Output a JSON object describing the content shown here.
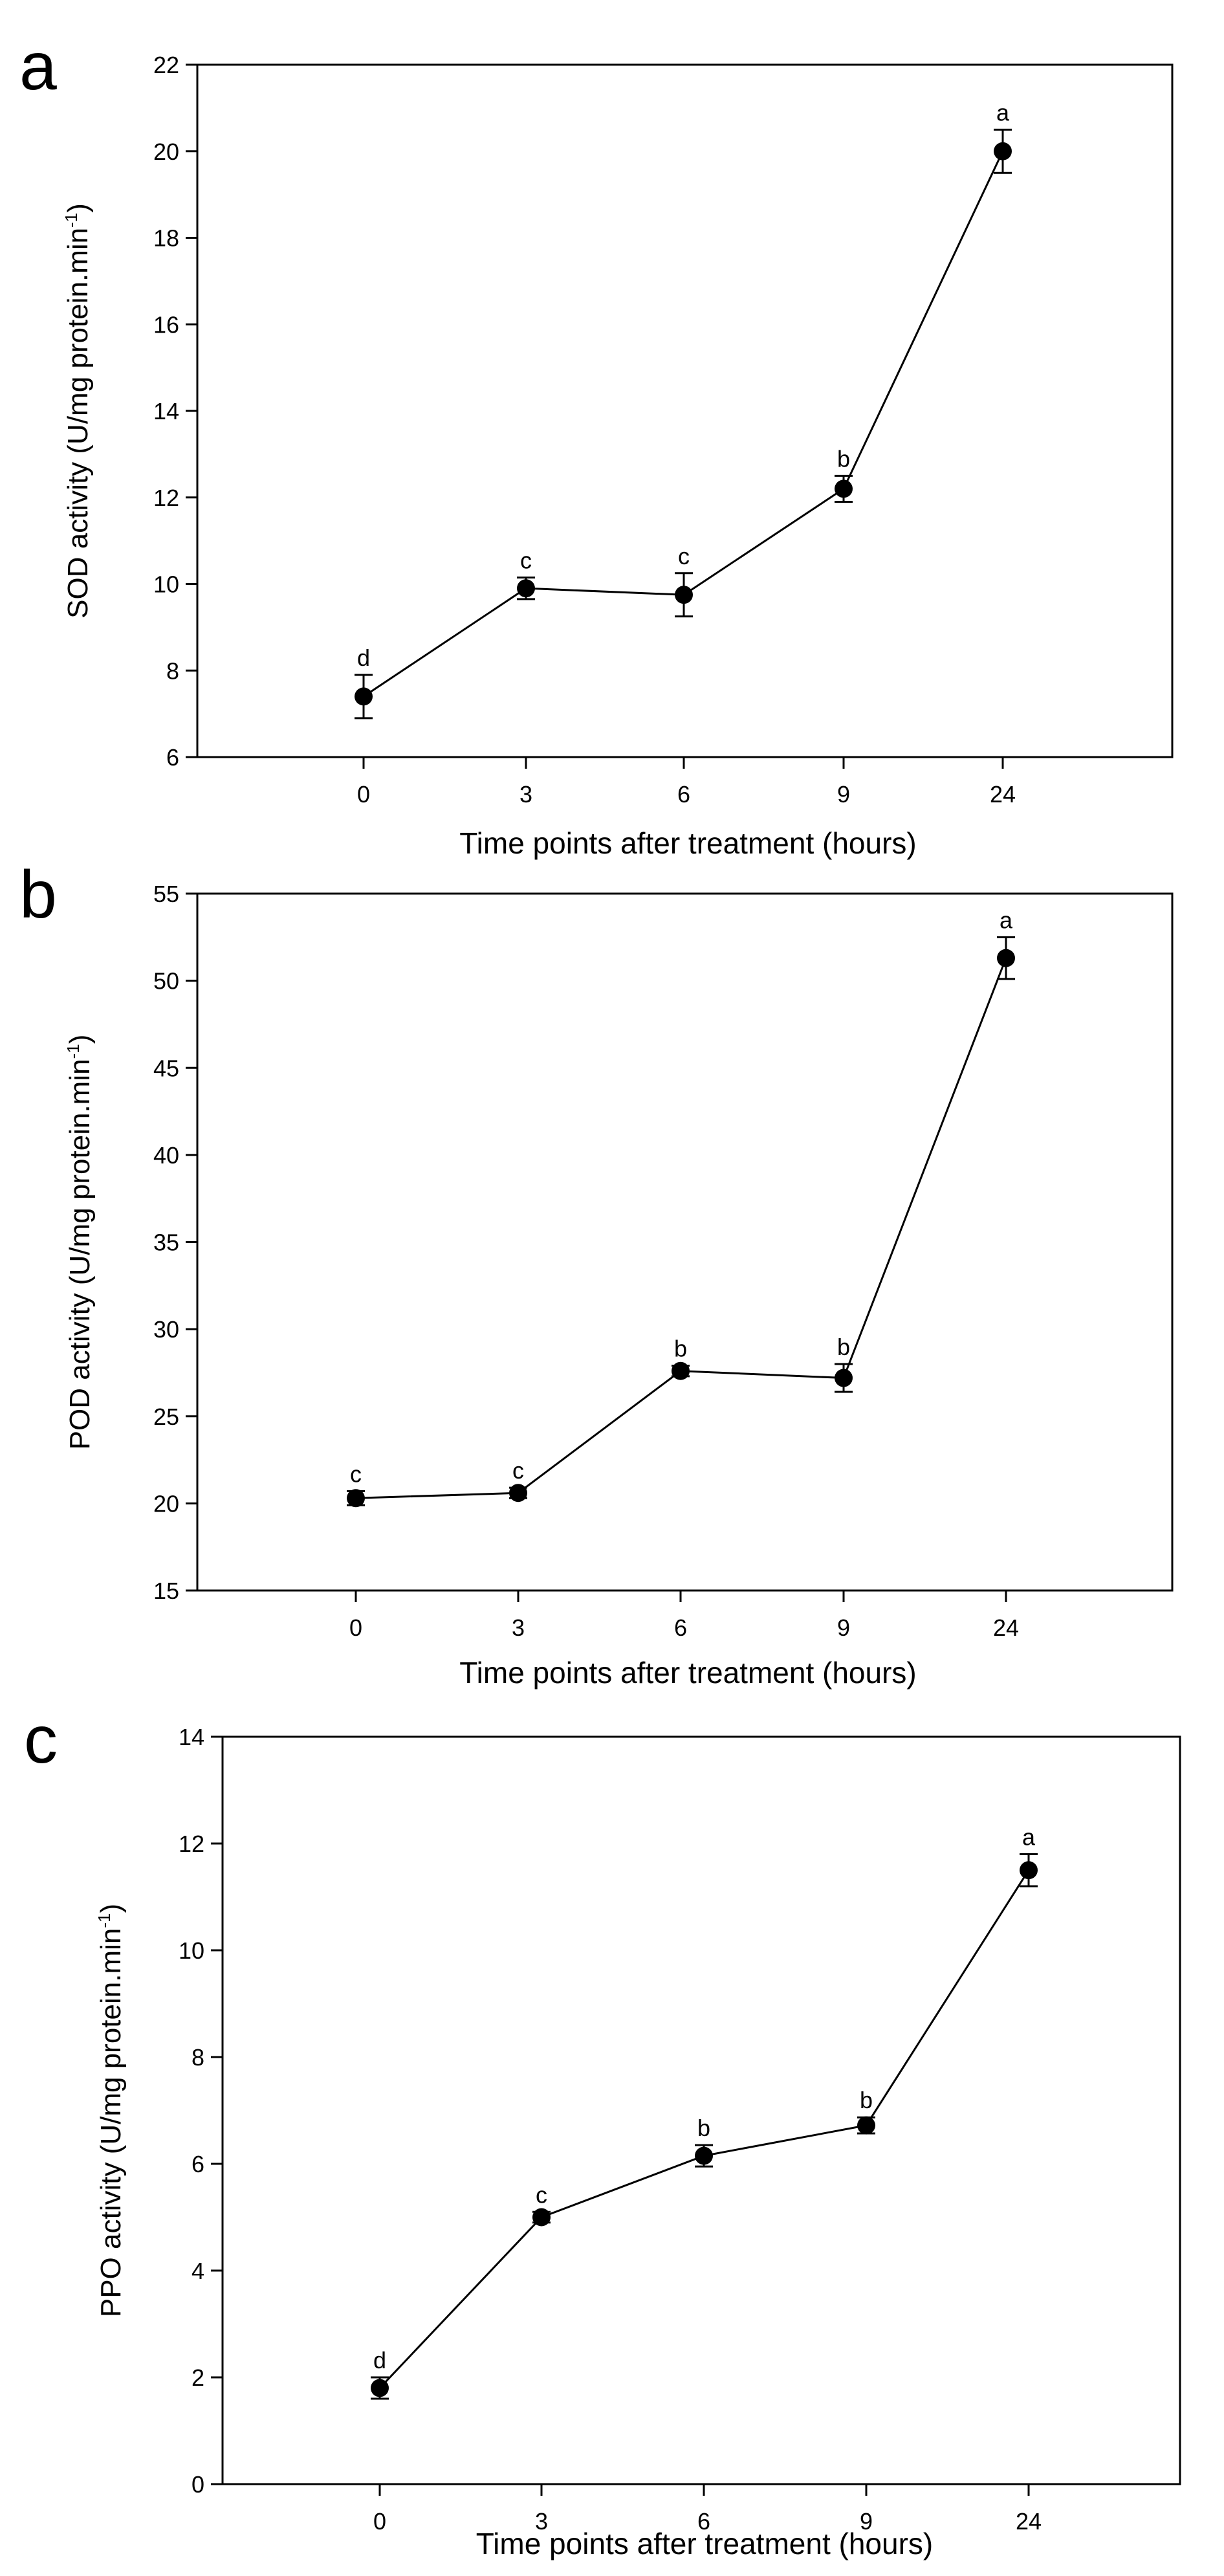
{
  "chart_data": [
    {
      "panel_label": "a",
      "type": "line",
      "x_categories": [
        "0",
        "3",
        "6",
        "9",
        "24"
      ],
      "series": [
        {
          "name": "SOD activity",
          "values": [
            7.4,
            9.9,
            9.75,
            12.2,
            20.0
          ],
          "errors": [
            0.5,
            0.25,
            0.5,
            0.3,
            0.5
          ],
          "significance_letters": [
            "d",
            "c",
            "c",
            "b",
            "a"
          ]
        }
      ],
      "xlabel": "Time points after treatment (hours)",
      "ylabel": "SOD activity (U/mg protein.min",
      "ylabel_superscript": "-1",
      "ylabel_suffix": ")",
      "ylim": [
        6,
        22
      ],
      "yticks": [
        6,
        8,
        10,
        12,
        14,
        16,
        18,
        20,
        22
      ],
      "grid": false,
      "legend": "none"
    },
    {
      "panel_label": "b",
      "type": "line",
      "x_categories": [
        "0",
        "3",
        "6",
        "9",
        "24"
      ],
      "series": [
        {
          "name": "POD activity",
          "values": [
            20.3,
            20.6,
            27.6,
            27.2,
            51.3
          ],
          "errors": [
            0.4,
            0.3,
            0.3,
            0.8,
            1.2
          ],
          "significance_letters": [
            "c",
            "c",
            "b",
            "b",
            "a"
          ]
        }
      ],
      "xlabel": "Time points after treatment (hours)",
      "ylabel": "POD activity (U/mg protein.min",
      "ylabel_superscript": "-1",
      "ylabel_suffix": ")",
      "ylim": [
        15,
        55
      ],
      "yticks": [
        15,
        20,
        25,
        30,
        35,
        40,
        45,
        50,
        55
      ],
      "grid": false,
      "legend": "none"
    },
    {
      "panel_label": "c",
      "type": "line",
      "x_categories": [
        "0",
        "3",
        "6",
        "9",
        "24"
      ],
      "series": [
        {
          "name": "PPO activity",
          "values": [
            1.8,
            5.0,
            6.15,
            6.72,
            11.5
          ],
          "errors": [
            0.2,
            0.1,
            0.2,
            0.15,
            0.3
          ],
          "significance_letters": [
            "d",
            "c",
            "b",
            "b",
            "a"
          ]
        }
      ],
      "xlabel": "Time points after treatment (hours)",
      "ylabel": "PPO activity (U/mg protein.min",
      "ylabel_superscript": "-1",
      "ylabel_suffix": ")",
      "ylim": [
        0,
        14
      ],
      "yticks": [
        0,
        2,
        4,
        6,
        8,
        10,
        12,
        14
      ],
      "grid": false,
      "legend": "none"
    }
  ]
}
